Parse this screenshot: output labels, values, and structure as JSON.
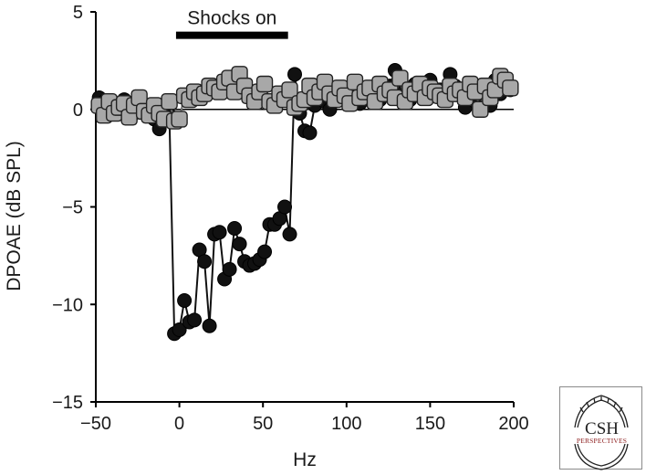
{
  "chart_data": {
    "type": "line",
    "xlabel": "Hz",
    "ylabel": "DPOAE (dB SPL)",
    "xlim": [
      -50,
      200
    ],
    "ylim": [
      -15,
      5
    ],
    "xticks": [
      -50,
      0,
      50,
      100,
      150,
      200
    ],
    "yticks": [
      -15,
      -10,
      -5,
      0,
      5
    ],
    "xtick_labels": [
      "−50",
      "0",
      "50",
      "100",
      "150",
      "200"
    ],
    "ytick_labels": [
      "−15",
      "−10",
      "−5",
      "0",
      "5"
    ],
    "zero_line": true,
    "grid": false,
    "annotation": {
      "label": "Shocks on",
      "x_start": -2,
      "x_end": 65,
      "y": 3.8
    },
    "series": [
      {
        "marker": "circle",
        "color": "#111111",
        "x": [
          -48,
          -45,
          -42,
          -39,
          -36,
          -33,
          -30,
          -27,
          -24,
          -21,
          -18,
          -15,
          -12,
          -9,
          -6,
          -3,
          0,
          3,
          6,
          9,
          12,
          15,
          18,
          21,
          24,
          27,
          30,
          33,
          36,
          39,
          42,
          45,
          48,
          51,
          54,
          57,
          60,
          63,
          66,
          69,
          72,
          75,
          78,
          81,
          84,
          87,
          90,
          93,
          96,
          99,
          102,
          105,
          108,
          111,
          114,
          117,
          120,
          123,
          126,
          129,
          132,
          135,
          138,
          141,
          144,
          147,
          150,
          153,
          156,
          159,
          162,
          165,
          168,
          171,
          174,
          177,
          180,
          183,
          186,
          189,
          192,
          195,
          198
        ],
        "y": [
          0.6,
          0.4,
          0.1,
          0.3,
          0.2,
          0.5,
          0.1,
          -0.2,
          0.3,
          0.1,
          -0.3,
          -0.5,
          -1.0,
          -0.2,
          -0.3,
          -11.5,
          -11.3,
          -9.8,
          -10.9,
          -10.8,
          -7.2,
          -7.8,
          -11.1,
          -6.4,
          -6.3,
          -8.7,
          -8.2,
          -6.1,
          -6.9,
          -7.8,
          -8.0,
          -7.9,
          -7.7,
          -7.3,
          -5.9,
          -5.9,
          -5.6,
          -5.0,
          -6.4,
          1.8,
          -0.2,
          -1.1,
          -1.2,
          0.2,
          0.9,
          0.4,
          0.0,
          0.8,
          0.6,
          1.0,
          0.4,
          0.7,
          0.3,
          0.9,
          0.6,
          1.1,
          0.5,
          0.8,
          1.2,
          2.0,
          0.7,
          1.0,
          0.5,
          1.3,
          0.9,
          0.6,
          1.5,
          0.8,
          1.0,
          0.6,
          1.8,
          1.2,
          0.9,
          0.1,
          1.3,
          0.4,
          0.9,
          1.1,
          0.2,
          1.5,
          0.8,
          1.3,
          1.0
        ]
      },
      {
        "marker": "square",
        "color": "#a8a8a8",
        "x": [
          -48,
          -45,
          -42,
          -39,
          -36,
          -33,
          -30,
          -27,
          -24,
          -21,
          -18,
          -15,
          -12,
          -9,
          -6,
          -3,
          0,
          3,
          6,
          9,
          12,
          15,
          18,
          21,
          24,
          27,
          30,
          33,
          36,
          39,
          42,
          45,
          48,
          51,
          54,
          57,
          60,
          63,
          66,
          69,
          72,
          75,
          78,
          81,
          84,
          87,
          90,
          93,
          96,
          99,
          102,
          105,
          108,
          111,
          114,
          117,
          120,
          123,
          126,
          129,
          132,
          135,
          138,
          141,
          144,
          147,
          150,
          153,
          156,
          159,
          162,
          165,
          168,
          171,
          174,
          177,
          180,
          183,
          186,
          189,
          192,
          195,
          198
        ],
        "y": [
          0.2,
          -0.3,
          0.4,
          -0.2,
          0.1,
          0.3,
          -0.4,
          0.2,
          0.6,
          -0.1,
          -0.3,
          0.2,
          -0.2,
          -0.5,
          0.4,
          -0.6,
          -0.5,
          0.7,
          0.5,
          0.9,
          0.6,
          0.8,
          1.2,
          1.1,
          0.9,
          1.4,
          1.6,
          0.9,
          1.8,
          1.2,
          0.7,
          0.4,
          0.9,
          1.3,
          0.4,
          0.2,
          0.8,
          0.5,
          1.0,
          0.1,
          0.3,
          0.5,
          1.2,
          0.6,
          0.9,
          1.4,
          0.8,
          0.5,
          1.1,
          0.7,
          0.3,
          1.4,
          0.6,
          0.9,
          1.1,
          0.4,
          1.3,
          0.8,
          1.0,
          0.6,
          1.6,
          0.4,
          1.0,
          0.8,
          1.3,
          0.6,
          1.1,
          0.9,
          0.7,
          0.5,
          1.2,
          0.8,
          1.0,
          0.6,
          1.3,
          0.9,
          0.0,
          1.2,
          0.6,
          1.0,
          1.7,
          1.5,
          1.1
        ]
      }
    ]
  },
  "logo": {
    "name": "csh-perspectives-logo",
    "top_text": "CSH",
    "bottom_text": "PERSPECTIVES"
  }
}
